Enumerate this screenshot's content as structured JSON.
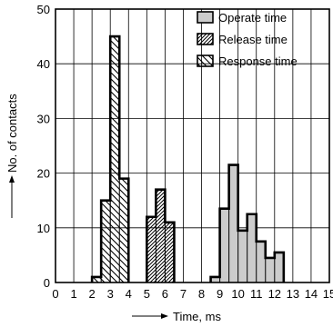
{
  "chart_data": {
    "type": "bar",
    "title": "",
    "xlabel": "Time, ms",
    "ylabel": "No. of contacts",
    "xlim": [
      0,
      15
    ],
    "ylim": [
      0,
      50
    ],
    "x_ticks": [
      "0",
      "1",
      "2",
      "3",
      "4",
      "5",
      "6",
      "7",
      "8",
      "9",
      "10",
      "11",
      "12",
      "13",
      "14",
      "15"
    ],
    "y_ticks": [
      "0",
      "10",
      "20",
      "30",
      "40",
      "50"
    ],
    "grid": true,
    "bin_width": 0.5,
    "legend_position": "top-right",
    "series": [
      {
        "name": "Response time",
        "fill": "backslash-hatch",
        "bins": [
          {
            "x0": 2.0,
            "x1": 2.5,
            "count": 1
          },
          {
            "x0": 2.5,
            "x1": 3.0,
            "count": 15
          },
          {
            "x0": 3.0,
            "x1": 3.5,
            "count": 45
          },
          {
            "x0": 3.5,
            "x1": 4.0,
            "count": 19
          }
        ]
      },
      {
        "name": "Release time",
        "fill": "forward-hatch",
        "bins": [
          {
            "x0": 5.0,
            "x1": 5.5,
            "count": 12
          },
          {
            "x0": 5.5,
            "x1": 6.0,
            "count": 17
          },
          {
            "x0": 6.0,
            "x1": 6.5,
            "count": 11
          }
        ]
      },
      {
        "name": "Operate time",
        "fill": "gray",
        "bins": [
          {
            "x0": 8.5,
            "x1": 9.0,
            "count": 1
          },
          {
            "x0": 9.0,
            "x1": 9.5,
            "count": 13.5
          },
          {
            "x0": 9.5,
            "x1": 10.0,
            "count": 21.5
          },
          {
            "x0": 10.0,
            "x1": 10.5,
            "count": 9.5
          },
          {
            "x0": 10.5,
            "x1": 11.0,
            "count": 12.5
          },
          {
            "x0": 11.0,
            "x1": 11.5,
            "count": 7.5
          },
          {
            "x0": 11.5,
            "x1": 12.0,
            "count": 4.5
          },
          {
            "x0": 12.0,
            "x1": 12.5,
            "count": 5.5
          }
        ]
      }
    ],
    "legend": [
      "Operate time",
      "Release time",
      "Response time"
    ],
    "colors": {
      "gray": "#cccccc",
      "line": "#000000",
      "background": "#ffffff"
    }
  }
}
